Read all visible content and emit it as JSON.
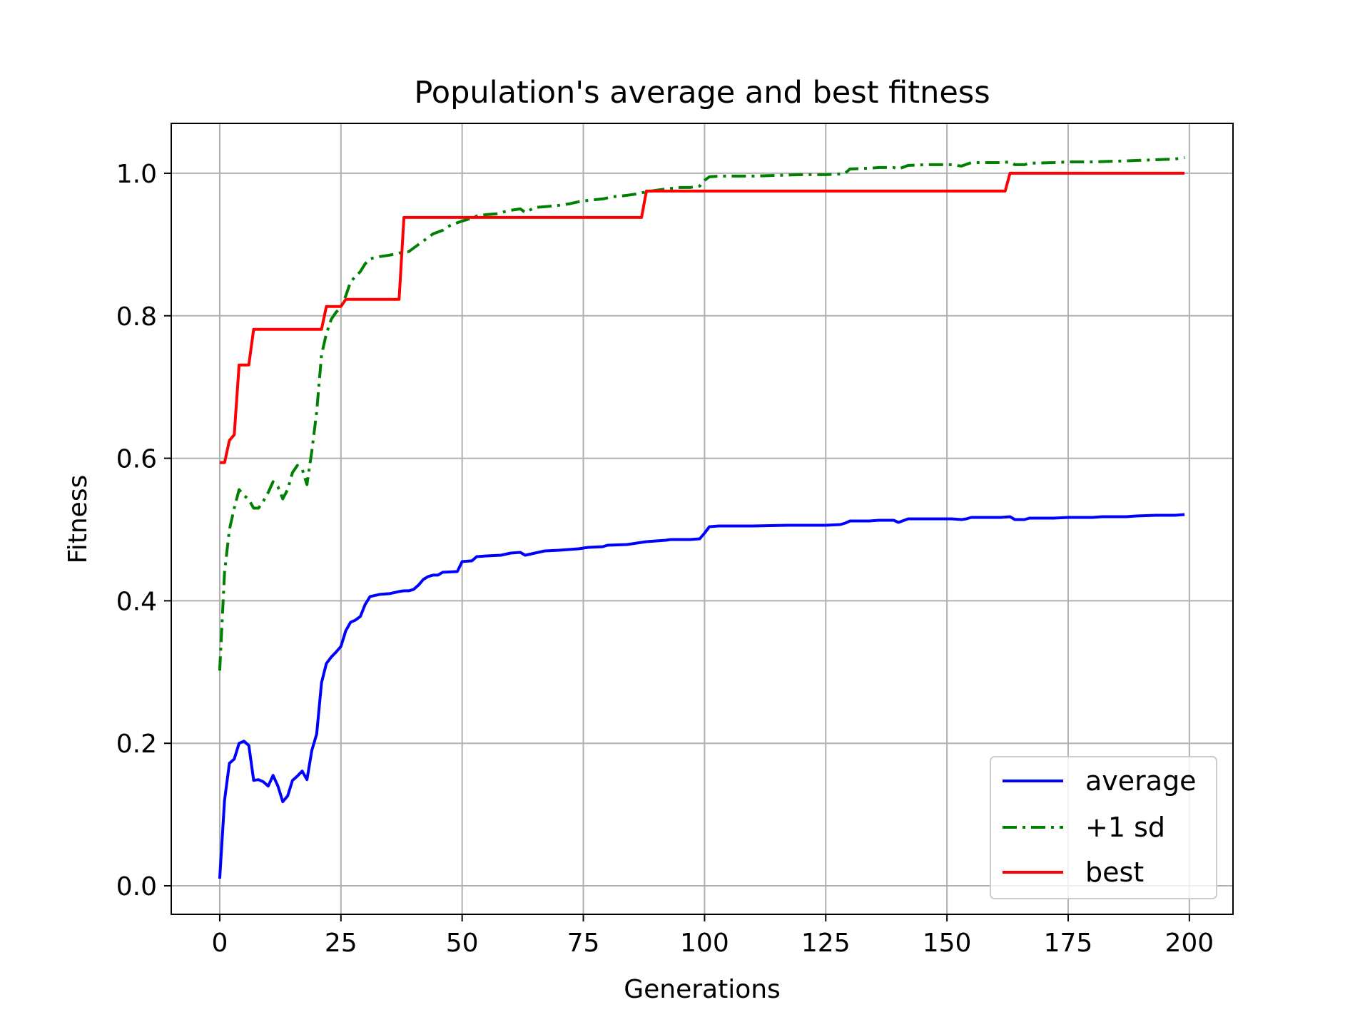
{
  "chart_data": {
    "type": "line",
    "title": "Population's average and best fitness",
    "xlabel": "Generations",
    "ylabel": "Fitness",
    "xlim": [
      -10,
      209
    ],
    "ylim": [
      -0.04,
      1.07
    ],
    "xticks": [
      0,
      25,
      50,
      75,
      100,
      125,
      150,
      175,
      200
    ],
    "xtick_labels": [
      "0",
      "25",
      "50",
      "75",
      "100",
      "125",
      "150",
      "175",
      "200"
    ],
    "yticks": [
      0.0,
      0.2,
      0.4,
      0.6,
      0.8,
      1.0
    ],
    "ytick_labels": [
      "0.0",
      "0.2",
      "0.4",
      "0.6",
      "0.8",
      "1.0"
    ],
    "grid": true,
    "legend_position": "lower-right",
    "series": [
      {
        "name": "average",
        "color": "#0000ff",
        "style": "solid",
        "points": [
          [
            0,
            0.01
          ],
          [
            1,
            0.12
          ],
          [
            2,
            0.172
          ],
          [
            3,
            0.178
          ],
          [
            4,
            0.2
          ],
          [
            5,
            0.203
          ],
          [
            6,
            0.197
          ],
          [
            7,
            0.148
          ],
          [
            8,
            0.149
          ],
          [
            9,
            0.146
          ],
          [
            10,
            0.14
          ],
          [
            11,
            0.155
          ],
          [
            12,
            0.14
          ],
          [
            13,
            0.118
          ],
          [
            14,
            0.126
          ],
          [
            15,
            0.148
          ],
          [
            16,
            0.154
          ],
          [
            17,
            0.161
          ],
          [
            18,
            0.149
          ],
          [
            19,
            0.19
          ],
          [
            20,
            0.213
          ],
          [
            21,
            0.285
          ],
          [
            22,
            0.312
          ],
          [
            23,
            0.321
          ],
          [
            24,
            0.328
          ],
          [
            25,
            0.336
          ],
          [
            26,
            0.358
          ],
          [
            27,
            0.37
          ],
          [
            28,
            0.373
          ],
          [
            29,
            0.378
          ],
          [
            30,
            0.395
          ],
          [
            31,
            0.406
          ],
          [
            33,
            0.409
          ],
          [
            35,
            0.41
          ],
          [
            37,
            0.413
          ],
          [
            38,
            0.414
          ],
          [
            39,
            0.414
          ],
          [
            40,
            0.416
          ],
          [
            41,
            0.422
          ],
          [
            42,
            0.43
          ],
          [
            43,
            0.434
          ],
          [
            44,
            0.436
          ],
          [
            45,
            0.436
          ],
          [
            46,
            0.44
          ],
          [
            49,
            0.441
          ],
          [
            50,
            0.455
          ],
          [
            52,
            0.456
          ],
          [
            53,
            0.462
          ],
          [
            55,
            0.463
          ],
          [
            58,
            0.464
          ],
          [
            60,
            0.467
          ],
          [
            62,
            0.468
          ],
          [
            63,
            0.464
          ],
          [
            65,
            0.467
          ],
          [
            67,
            0.47
          ],
          [
            70,
            0.471
          ],
          [
            72,
            0.472
          ],
          [
            74,
            0.473
          ],
          [
            76,
            0.475
          ],
          [
            79,
            0.476
          ],
          [
            80,
            0.478
          ],
          [
            84,
            0.479
          ],
          [
            86,
            0.481
          ],
          [
            88,
            0.483
          ],
          [
            90,
            0.484
          ],
          [
            92,
            0.485
          ],
          [
            93,
            0.486
          ],
          [
            97,
            0.486
          ],
          [
            99,
            0.487
          ],
          [
            100,
            0.495
          ],
          [
            101,
            0.504
          ],
          [
            103,
            0.505
          ],
          [
            110,
            0.505
          ],
          [
            117,
            0.506
          ],
          [
            125,
            0.506
          ],
          [
            128,
            0.507
          ],
          [
            129,
            0.509
          ],
          [
            130,
            0.512
          ],
          [
            134,
            0.512
          ],
          [
            136,
            0.513
          ],
          [
            139,
            0.513
          ],
          [
            140,
            0.51
          ],
          [
            142,
            0.515
          ],
          [
            146,
            0.515
          ],
          [
            151,
            0.515
          ],
          [
            153,
            0.514
          ],
          [
            154,
            0.515
          ],
          [
            155,
            0.517
          ],
          [
            158,
            0.517
          ],
          [
            161,
            0.517
          ],
          [
            163,
            0.518
          ],
          [
            164,
            0.514
          ],
          [
            166,
            0.514
          ],
          [
            167,
            0.516
          ],
          [
            172,
            0.516
          ],
          [
            175,
            0.517
          ],
          [
            180,
            0.517
          ],
          [
            182,
            0.518
          ],
          [
            187,
            0.518
          ],
          [
            189,
            0.519
          ],
          [
            193,
            0.52
          ],
          [
            197,
            0.52
          ],
          [
            199,
            0.521
          ]
        ]
      },
      {
        "name": "+1 sd",
        "color": "#008000",
        "style": "dashdot",
        "points": [
          [
            0,
            0.302
          ],
          [
            1,
            0.44
          ],
          [
            2,
            0.5
          ],
          [
            3,
            0.53
          ],
          [
            4,
            0.556
          ],
          [
            5,
            0.548
          ],
          [
            6,
            0.542
          ],
          [
            7,
            0.53
          ],
          [
            8,
            0.53
          ],
          [
            9,
            0.54
          ],
          [
            10,
            0.552
          ],
          [
            11,
            0.567
          ],
          [
            12,
            0.56
          ],
          [
            13,
            0.543
          ],
          [
            14,
            0.556
          ],
          [
            15,
            0.58
          ],
          [
            16,
            0.59
          ],
          [
            17,
            0.585
          ],
          [
            18,
            0.563
          ],
          [
            19,
            0.61
          ],
          [
            20,
            0.665
          ],
          [
            21,
            0.745
          ],
          [
            22,
            0.775
          ],
          [
            23,
            0.795
          ],
          [
            24,
            0.805
          ],
          [
            25,
            0.812
          ],
          [
            26,
            0.828
          ],
          [
            27,
            0.848
          ],
          [
            28,
            0.855
          ],
          [
            29,
            0.862
          ],
          [
            30,
            0.873
          ],
          [
            31,
            0.88
          ],
          [
            33,
            0.883
          ],
          [
            35,
            0.885
          ],
          [
            37,
            0.888
          ],
          [
            39,
            0.89
          ],
          [
            40,
            0.895
          ],
          [
            41,
            0.9
          ],
          [
            42,
            0.905
          ],
          [
            43,
            0.91
          ],
          [
            44,
            0.915
          ],
          [
            46,
            0.92
          ],
          [
            47,
            0.925
          ],
          [
            48,
            0.928
          ],
          [
            50,
            0.933
          ],
          [
            52,
            0.937
          ],
          [
            53,
            0.94
          ],
          [
            55,
            0.942
          ],
          [
            57,
            0.943
          ],
          [
            58,
            0.945
          ],
          [
            60,
            0.948
          ],
          [
            62,
            0.95
          ],
          [
            63,
            0.945
          ],
          [
            65,
            0.952
          ],
          [
            67,
            0.953
          ],
          [
            70,
            0.955
          ],
          [
            72,
            0.957
          ],
          [
            74,
            0.96
          ],
          [
            76,
            0.962
          ],
          [
            79,
            0.964
          ],
          [
            81,
            0.967
          ],
          [
            84,
            0.969
          ],
          [
            86,
            0.971
          ],
          [
            88,
            0.974
          ],
          [
            90,
            0.976
          ],
          [
            92,
            0.978
          ],
          [
            95,
            0.98
          ],
          [
            97,
            0.98
          ],
          [
            99,
            0.982
          ],
          [
            100,
            0.99
          ],
          [
            101,
            0.995
          ],
          [
            103,
            0.996
          ],
          [
            110,
            0.996
          ],
          [
            115,
            0.997
          ],
          [
            120,
            0.998
          ],
          [
            125,
            0.998
          ],
          [
            128,
            0.999
          ],
          [
            129,
            1.0
          ],
          [
            130,
            1.006
          ],
          [
            134,
            1.007
          ],
          [
            136,
            1.008
          ],
          [
            139,
            1.008
          ],
          [
            140,
            1.006
          ],
          [
            142,
            1.011
          ],
          [
            146,
            1.012
          ],
          [
            151,
            1.012
          ],
          [
            153,
            1.01
          ],
          [
            155,
            1.015
          ],
          [
            158,
            1.015
          ],
          [
            161,
            1.015
          ],
          [
            163,
            1.016
          ],
          [
            164,
            1.012
          ],
          [
            166,
            1.012
          ],
          [
            167,
            1.014
          ],
          [
            172,
            1.015
          ],
          [
            175,
            1.016
          ],
          [
            180,
            1.016
          ],
          [
            185,
            1.017
          ],
          [
            189,
            1.018
          ],
          [
            193,
            1.019
          ],
          [
            197,
            1.02
          ],
          [
            199,
            1.022
          ]
        ]
      },
      {
        "name": "best",
        "color": "#ff0000",
        "style": "solid",
        "points": [
          [
            0,
            0.594
          ],
          [
            1,
            0.594
          ],
          [
            2,
            0.625
          ],
          [
            3,
            0.633
          ],
          [
            4,
            0.731
          ],
          [
            6,
            0.731
          ],
          [
            7,
            0.781
          ],
          [
            21,
            0.781
          ],
          [
            22,
            0.813
          ],
          [
            25,
            0.813
          ],
          [
            26,
            0.823
          ],
          [
            37,
            0.823
          ],
          [
            38,
            0.938
          ],
          [
            87,
            0.938
          ],
          [
            88,
            0.975
          ],
          [
            162,
            0.975
          ],
          [
            163,
            1.0
          ],
          [
            199,
            1.0
          ]
        ]
      }
    ]
  }
}
